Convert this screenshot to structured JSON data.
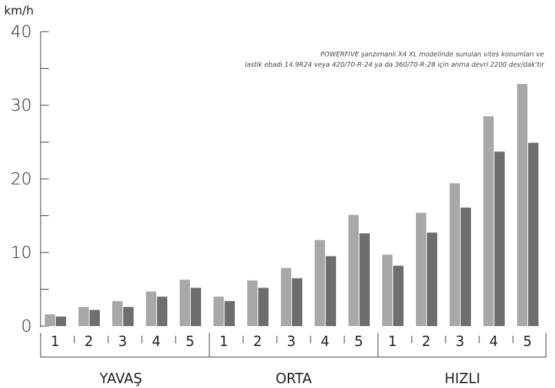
{
  "chart_data": {
    "type": "bar",
    "unit_label": "km/h",
    "y_ticks": [
      "0",
      "10",
      "20",
      "30",
      "40"
    ],
    "ylim": [
      0,
      40
    ],
    "note_lines": [
      "POWERFIVE şanzımanlı X4 XL modelinde sunulan vites konumları ve",
      "lastik ebadı 14.9R24 veya 420/70-R-24 ya da 360/70-R-28 için anma devri 2200 dev/dak'tır"
    ],
    "groups": [
      {
        "label": "YAVAŞ",
        "categories": [
          "1",
          "2",
          "3",
          "4",
          "5"
        ]
      },
      {
        "label": "ORTA",
        "categories": [
          "1",
          "2",
          "3",
          "4",
          "5"
        ]
      },
      {
        "label": "HIZLI",
        "categories": [
          "1",
          "2",
          "3",
          "4",
          "5"
        ]
      }
    ],
    "series": [
      {
        "color": "#a8a8a8",
        "values": [
          1.6,
          2.6,
          3.4,
          4.7,
          6.3,
          4.0,
          6.2,
          7.9,
          11.7,
          15.1,
          9.7,
          15.4,
          19.4,
          28.5,
          32.9
        ]
      },
      {
        "color": "#6e6e70",
        "values": [
          1.3,
          2.2,
          2.6,
          4.0,
          5.2,
          3.4,
          5.2,
          6.5,
          9.5,
          12.6,
          8.2,
          12.7,
          16.1,
          23.7,
          24.9
        ]
      }
    ],
    "grid": false
  }
}
